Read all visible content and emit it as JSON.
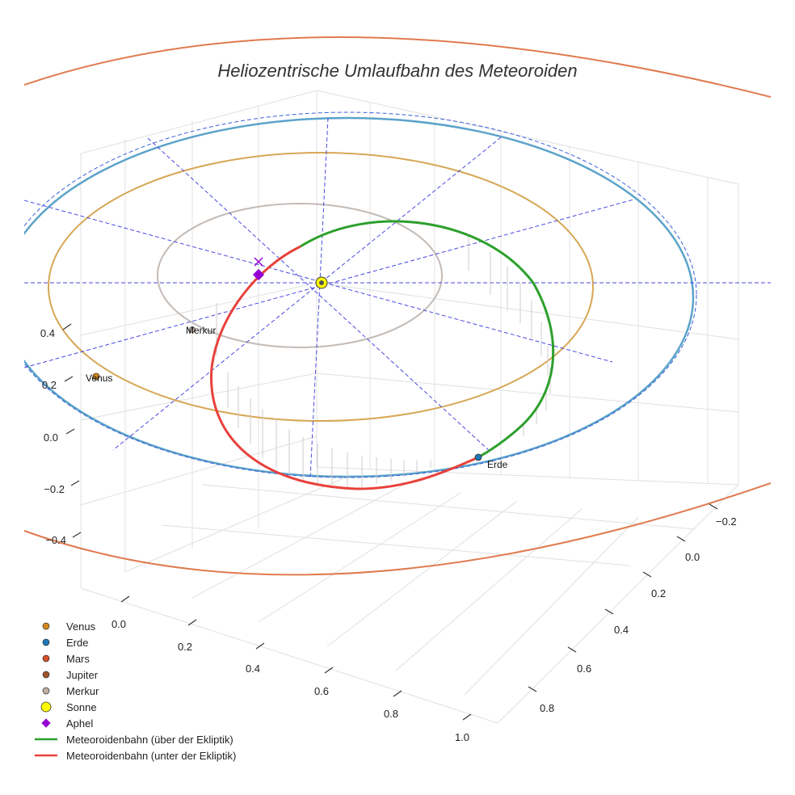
{
  "chart_data": {
    "type": "3d-line",
    "title": "Heliozentrische Umlaufbahn des Meteoroiden",
    "x_ticks": [
      "0.0",
      "0.2",
      "0.4",
      "0.6",
      "0.8",
      "1.0"
    ],
    "y_ticks": [
      "−0.2",
      "0.0",
      "0.2",
      "0.4",
      "0.6",
      "0.8"
    ],
    "z_ticks": [
      "0.4",
      "0.2",
      "0.0",
      "−0.2",
      "−0.4"
    ],
    "bodies": [
      {
        "name": "Sonne",
        "label": "",
        "color": "#ffff00",
        "x": 0.0,
        "y": 0.0,
        "z": 0.0
      },
      {
        "name": "Erde",
        "label": "Erde",
        "color": "#1f77b4",
        "x": 0.97,
        "y": 0.11,
        "z": 0.0
      },
      {
        "name": "Venus",
        "label": "Venus",
        "color": "#d2871f",
        "x": 0.19,
        "y": -0.71,
        "z": 0.0
      },
      {
        "name": "Merkur",
        "label": "Merkur",
        "color": "#c0aea3",
        "x": 0.31,
        "y": -0.25,
        "z": 0.0
      },
      {
        "name": "Aphel",
        "label": "",
        "color": "#9400d3",
        "x": 0.0,
        "y": -0.25,
        "z": 0.0
      }
    ],
    "orbits": [
      {
        "name": "Mars",
        "color": "#e07a4f",
        "radius": 1.52
      },
      {
        "name": "Erde",
        "color": "#5ba3c9",
        "radius": 1.0
      },
      {
        "name": "Venus",
        "color": "#d6a755",
        "radius": 0.72
      },
      {
        "name": "Merkur",
        "color": "#c3bbb6",
        "radius": 0.39
      }
    ],
    "legend": [
      {
        "label": "Venus",
        "symbol": "dot",
        "color": "#d2871f"
      },
      {
        "label": "Erde",
        "symbol": "dot",
        "color": "#1f77b4"
      },
      {
        "label": "Mars",
        "symbol": "dot",
        "color": "#d4512b"
      },
      {
        "label": "Jupiter",
        "symbol": "dot",
        "color": "#a0522d"
      },
      {
        "label": "Merkur",
        "symbol": "dot",
        "color": "#c0aea3"
      },
      {
        "label": "Sonne",
        "symbol": "sun",
        "color": "#ffff00"
      },
      {
        "label": "Aphel",
        "symbol": "diamond",
        "color": "#9400d3"
      },
      {
        "label": "Meteoroidenbahn (über der Ekliptik)",
        "symbol": "line",
        "color": "#2ca02c"
      },
      {
        "label": "Meteoroidenbahn (unter der Ekliptik)",
        "symbol": "line",
        "color": "#e8413c"
      }
    ]
  }
}
